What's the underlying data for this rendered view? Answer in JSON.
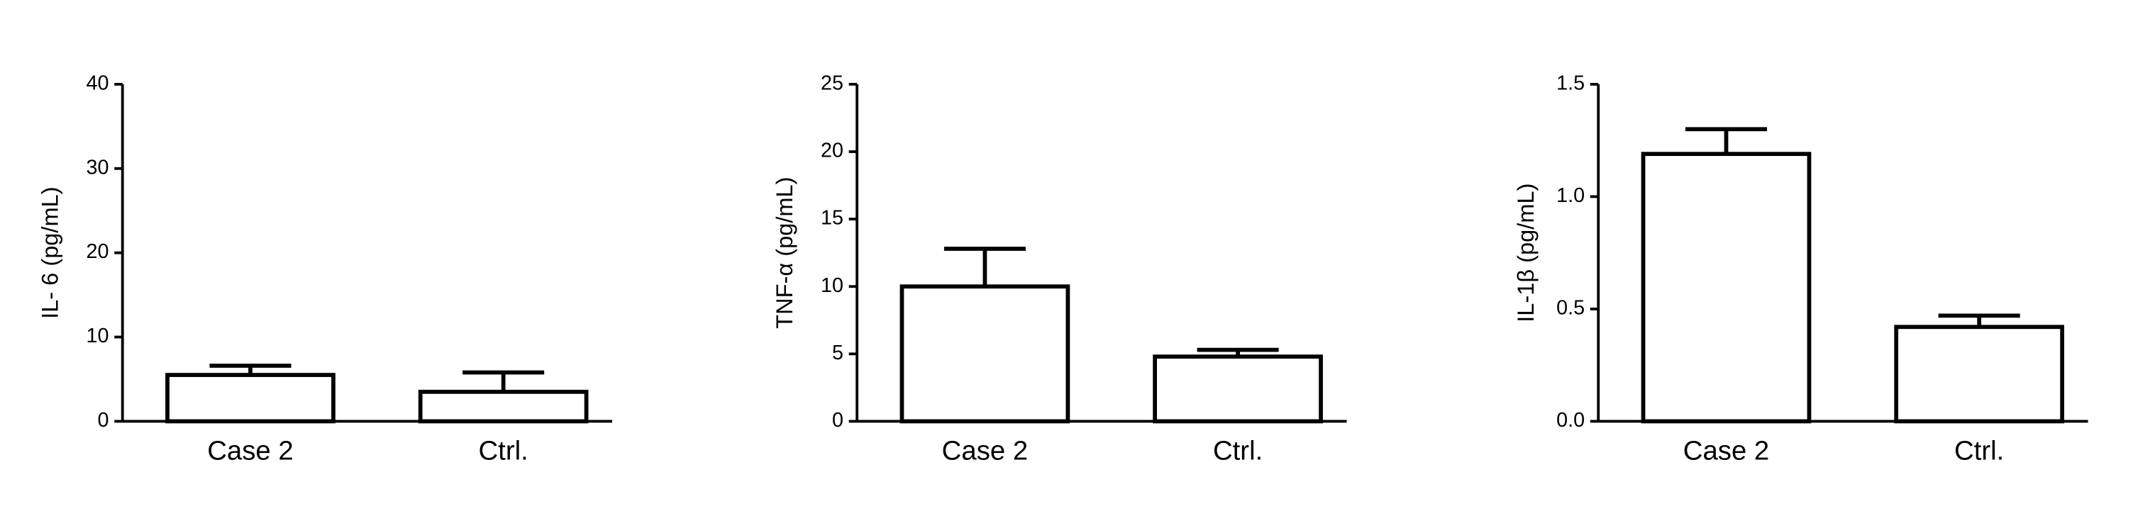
{
  "chart_data": [
    {
      "type": "bar",
      "y_label": "IL- 6 (pg/mL)",
      "categories": [
        "Case 2",
        "Ctrl."
      ],
      "values": [
        5.5,
        3.5
      ],
      "errors": [
        1.1,
        2.3
      ],
      "ylim": [
        0,
        40
      ],
      "yticks": [
        0,
        10,
        20,
        30,
        40
      ],
      "color": "#ffffff"
    },
    {
      "type": "bar",
      "y_label": "TNF-α (pg/mL)",
      "categories": [
        "Case 2",
        "Ctrl."
      ],
      "values": [
        10,
        4.8
      ],
      "errors": [
        2.8,
        0.5
      ],
      "ylim": [
        0,
        25
      ],
      "yticks": [
        0,
        5,
        10,
        15,
        20,
        25
      ],
      "color": "#ffffff"
    },
    {
      "type": "bar",
      "y_label": "IL-1β (pg/mL)",
      "categories": [
        "Case 2",
        "Ctrl."
      ],
      "values": [
        1.19,
        0.42
      ],
      "errors": [
        0.11,
        0.05
      ],
      "ylim": [
        0,
        1.5
      ],
      "yticks": [
        {
          "value": 0,
          "label": "0.0"
        },
        0.5,
        {
          "value": 1,
          "label": "1.0"
        },
        1.5
      ],
      "color": "#ffffff"
    }
  ]
}
